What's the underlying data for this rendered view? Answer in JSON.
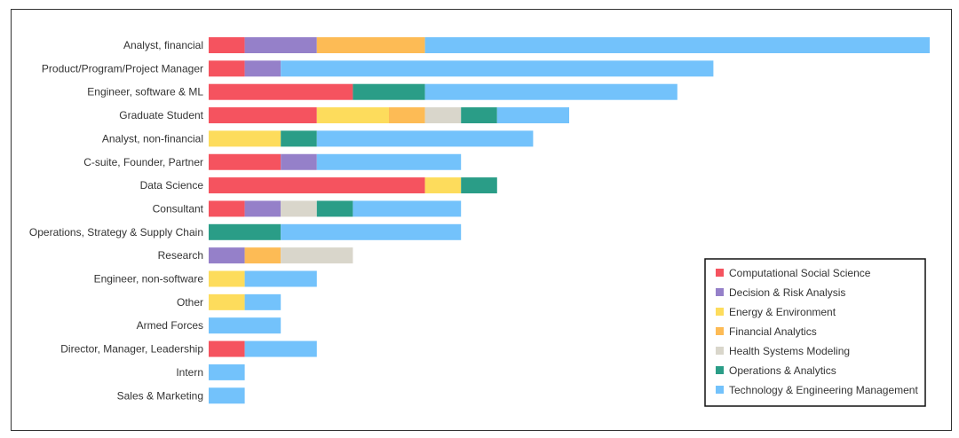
{
  "chart_data": {
    "type": "bar",
    "orientation": "horizontal",
    "stacked": true,
    "categories": [
      "Analyst, financial",
      "Product/Program/Project Manager",
      "Engineer, software & ML",
      "Graduate Student",
      "Analyst, non-financial",
      "C-suite, Founder, Partner",
      "Data Science",
      "Consultant",
      "Operations, Strategy & Supply Chain",
      "Research",
      "Engineer, non-software",
      "Other",
      "Armed Forces",
      "Director, Manager, Leadership",
      "Intern",
      "Sales & Marketing"
    ],
    "series": [
      {
        "name": "Computational Social Science",
        "color": "#f5535f",
        "values": [
          1,
          1,
          4,
          3,
          0,
          2,
          6,
          1,
          0,
          0,
          0,
          0,
          0,
          1,
          0,
          0
        ]
      },
      {
        "name": "Decision & Risk Analysis",
        "color": "#9580c9",
        "values": [
          2,
          1,
          0,
          0,
          0,
          1,
          0,
          1,
          0,
          1,
          0,
          0,
          0,
          0,
          0,
          0
        ]
      },
      {
        "name": "Energy & Environment",
        "color": "#fddc5c",
        "values": [
          0,
          0,
          0,
          2,
          2,
          0,
          1,
          0,
          0,
          0,
          1,
          1,
          0,
          0,
          0,
          0
        ]
      },
      {
        "name": "Financial Analytics",
        "color": "#fdbb55",
        "values": [
          3,
          0,
          0,
          1,
          0,
          0,
          0,
          0,
          0,
          1,
          0,
          0,
          0,
          0,
          0,
          0
        ]
      },
      {
        "name": "Health Systems Modeling",
        "color": "#d9d6cb",
        "values": [
          0,
          0,
          0,
          1,
          0,
          0,
          0,
          1,
          0,
          2,
          0,
          0,
          0,
          0,
          0,
          0
        ]
      },
      {
        "name": "Operations & Analytics",
        "color": "#2a9d87",
        "values": [
          0,
          0,
          2,
          1,
          1,
          0,
          1,
          1,
          2,
          0,
          0,
          0,
          0,
          0,
          0,
          0
        ]
      },
      {
        "name": "Technology & Engineering Management",
        "color": "#73c2fb",
        "values": [
          14,
          12,
          7,
          2,
          6,
          4,
          0,
          3,
          5,
          0,
          2,
          1,
          2,
          2,
          1,
          1
        ]
      }
    ],
    "xlim": [
      0,
      20
    ],
    "grid": false,
    "legend_position": "bottom-right"
  }
}
